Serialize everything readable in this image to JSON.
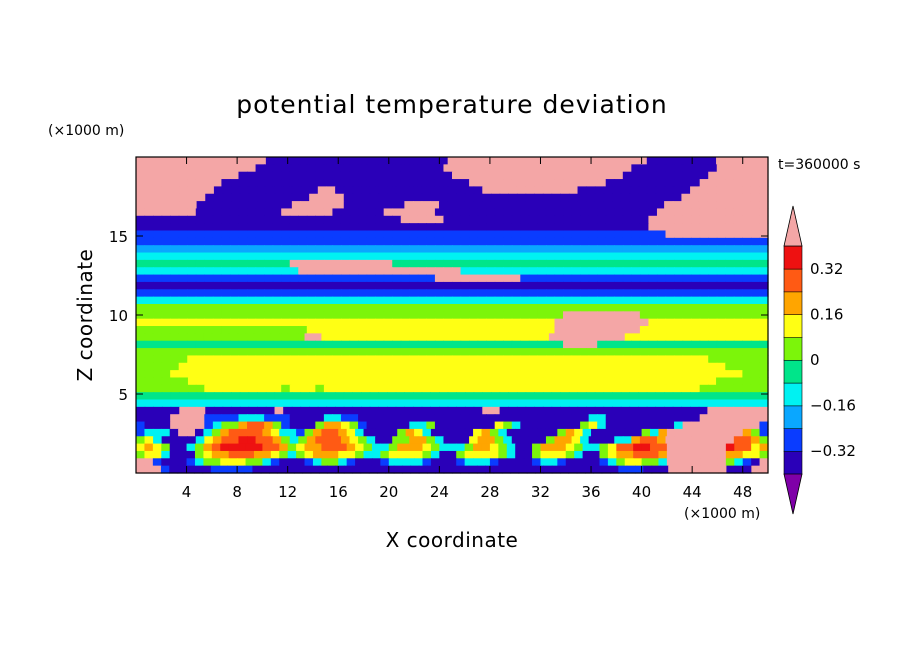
{
  "chart_data": {
    "type": "heatmap",
    "title": "potential temperature deviation",
    "xlabel": "X coordinate",
    "ylabel": "Z coordinate",
    "x_unit_label": "(×1000 m)",
    "y_unit_label": "(×1000 m)",
    "time_label": "t=360000 s",
    "xlim": [
      0,
      50
    ],
    "ylim": [
      0,
      20
    ],
    "x_ticks": [
      4,
      8,
      12,
      16,
      20,
      24,
      28,
      32,
      36,
      40,
      44,
      48
    ],
    "y_ticks": [
      5,
      10,
      15
    ],
    "colorbar": {
      "levels": [
        -0.4,
        -0.32,
        -0.24,
        -0.16,
        -0.08,
        0,
        0.08,
        0.16,
        0.24,
        0.32,
        0.4
      ],
      "tick_labels": [
        "0.32",
        "0.16",
        "0",
        "−0.16",
        "−0.32"
      ],
      "tick_values": [
        0.32,
        0.16,
        0,
        -0.16,
        -0.32
      ],
      "colors": [
        "#7f00a8",
        "#2a00b8",
        "#0a3cff",
        "#0aa7ff",
        "#00f2f2",
        "#00e58a",
        "#7cf50a",
        "#ffff14",
        "#ffa500",
        "#ff5a14",
        "#ee1111",
        "#f4a6a6"
      ],
      "extend": "both"
    },
    "field_rows_top_to_bottom": [
      "XXXXXXXXXXXXXXXaaaaaaaaaaaaaaaaaaaaaXXXXXXXXXXXXXXXXXXXXXXXaaaaaaaaXXXXXX",
      "XXXXXXXXXXXXXXaaaaaaaaaaaaaaaaaaaaaaXXXXXXXXXXXXXXXXXXXXXXaaaaaaaaaaXXXXXX",
      "XXXXXXXXXXXXaaaaaaaaaaaaaaaaaaaaaaaaaXXXXXXXXXXXXXXXXXXXXaaaaaaaaaaXXXXXXX",
      "XXXXXXXXXXaaaaaaaaaaaaaaaaaaaaaaaaaaaaaXXXXXXXXXXXXXXXXaaaaaaaaaaaXXXXXXXX",
      "XXXXXXXXXaaaaaaaaaaaaXXaaaaaaaaaaaaaaaaaXXXXXXXXXXXaaaaaaaaaaaaaXXXXXXXXX",
      "XXXXXXXXaaaaaaaaaaaaXXXXaaaaaaaaaaaaaaaaaaaaaaaaaaaaaaaaaaaaaaaXXXXXXXXXX",
      "XXXXXXXaaaaaaaaaaaXXXXXXaaaaaaaXXXXaaaaaaaaaaaaaaaaaaaaaaaaaaXXXXXXXXXXXX",
      "XXXXXXXaaaaaaaaaaXXXXXXaaaaaaXXXXXXaaaaaaaaaaaaaaaaaaaaaaaaaaXXXXXXXXXXXXX",
      "aaaaaaaaaaaaaaaaaaaaaaaaaaaaaaaXXXXXaaaaaaaaaaaaaaaaaaaaaaaaXXXXXXXXXXXXXX",
      "aaaaaaaaaaaaaaaaaaaaaaaaaaaaaaaaaaaaaaaaaaaaaaaaaaaaaaaaaaaaXXXXXXXXXXXXXX",
      "bbbbbbbbbbbbbbbbbbbbbbbbbbbbbbbbbbbbbbbbbbbbbbbbbbbbbbbbbbbbbbXXXXXXXXXXXX",
      "bbbbbbbbbbbbbbbbbbbbbbbbbbbbbbbbbbbbbbbbbbbbbbbbbbbbbbbbbbbbbbbbbbbbbbbbbb",
      "cccccccccccccccccccccccccccccccccccccccccccccccccccccccccccccccccccccccccc",
      "dddddddddddddddddddddddddddddddddddddddddddddddddddddddddddddddddddddddddd",
      "eeeeeeeeeeeeeeeeeeXXXXXXXXXXXXeeeeeeeeeeeeeeeeeeeeeeeeeeeeeeeeeeeeeeeeeeee",
      "dddddddddddddddddddXXXXXXXXXXXXXXXXXXXdddddddddddddddddddddddddddddddddddd",
      "bbbbbbbbbbbbbbbbbbbbbbbbbbbbbbbbbbbXXXXXXXXXXbbbbbbbbbbbbbbbbbbbbbbbbbbbbb",
      "aaaaaaaaaaaaaaaaaaaaaaaaaaaaaaaaaaaaaaaaaaaaaaaaaaaaaaaaaaaaaaaaaaaaaaaaaa",
      "bbbbbbbbbbbbbbbbbbbbbbbbbbbbbbbbbbbbbbbbbbbbbbbbbbbbbbbbbbbbbbbbbbbbbbbbbb",
      "dddddddddddddddddddddddddddddddddddddddddddddddddddddddddddddddddddddddddd",
      "ffffffffffffffffffffffffffffffffffffffffffffffffffffffffffffffffffffffffff",
      "ffffffffffffffffffffffffffffffffffffffffffffffffffXXXXXXXXXfffffffffffffff",
      "gggggggggggggggggggggggggggggggggggggggggggggggggXXXXXXXXXXXgggggggggggggg",
      "ffffffffffffffffffffgggggggggggggggggggggggggggggXXXXXXXXXXggggggggggggggg",
      "ffffffffffffffffffffXXgggggggggggggggggggggggggggXXXXXXXXXggggggggggggggggg",
      "eeeeeeeeeeeeeeeeeeeeeeeeeeeeeeeeeeeeeeeeeeeeeeeeeeXXXXeeeeeeeeeeeeeeeeeeee",
      "fffffffffffffffffffffffffffffffffffffffffffffffffffffffffffffffffffffffff",
      "ffffffgggggggggggggggggggggggggggggggggggggggggggggggggggggggggggggfffffff",
      "fffffggggggggggggggggggggggggggggggggggggggggggggggggggggggggggggggggfffff",
      "ffffgggggggggggggggggggggggggggggggggggggggggggggggggggggggggggggggggggfff",
      "ffffffgggggggggggggggggggggggggggggggggggggggggggggggggggggggggggggffffff",
      "ffffffffgggggggggfgggfggggggggggggggggggggggggggggggggggggggggggggffffffff",
      "eeeeeeeeeeeeeeeeeeeeeeeeeeeeeeeeeeeeeeeeeeeeeeeeeeeeeeeeeeeeeeeeeeeeeeeee",
      "ddddddddddddddddddddddddddddddddddddddddddddddddddddddddddddddddddddddddd",
      "aaaaaXXXaaaaaaaaXaaaaaaaaaaaaaaaaaaaaaaaXXaaaaaaaaaaaaaaaaaaaaaaaaXXXXXXX",
      "aaaaXXXXbbbbdddbbbaaaaddbbaaaaaaaaaaaaaaaaaaaaaaaaaaaddaaaaaaaaaaaXXXXXXXX",
      "baaaXXXXbdffhiihfbaaafhhgfbaaaaaddfaaaaaaagfdaaaaaaafgdaaaaaaaadXXXXXXXXXb",
      "bdddaXXadfhiiiihgddbfhiihgdaaaafhgdaaaaaghfdaaaaaafhgdaaaaaafdhXXXXXXXXXhfb",
      "fgdaaaadghiijjiihfdfhiiihgfdaaffhhfdaaaghhfdaaaafhhgdaaaddhiihXXXXXXXXiihf",
      "ghgfaadfhijjjjjiihfghhiiihgfddfhhhgfdddfhhgfdaafhhhgfddfgiijjiiXXXXXXXjiigh",
      "fggdaaafghhiiihhgfdfghhhggfddfggggfdaafggggfdaafgggfdaafghhiiihXXXXXXXhhggf",
      "XXbaaabdffgggffdbaaabdffdbaaabddddbaaabdddbaaaabddbaaaabdfggffdXXXXXXXfdbaX",
      "XXXbaaaaabbbbbaaaaaaaaaaaaaaaaaaaaaaaaaaaaaaaaaaaaaaaaaaaabbbaaaXXXXXXXaaaXX"
    ],
    "field_key": {
      "X": 0.4,
      "a": -0.4,
      "b": -0.32,
      "c": -0.24,
      "d": -0.16,
      "e": -0.08,
      "f": 0,
      "g": 0.08,
      "h": 0.16,
      "i": 0.24,
      "j": 0.32
    }
  }
}
